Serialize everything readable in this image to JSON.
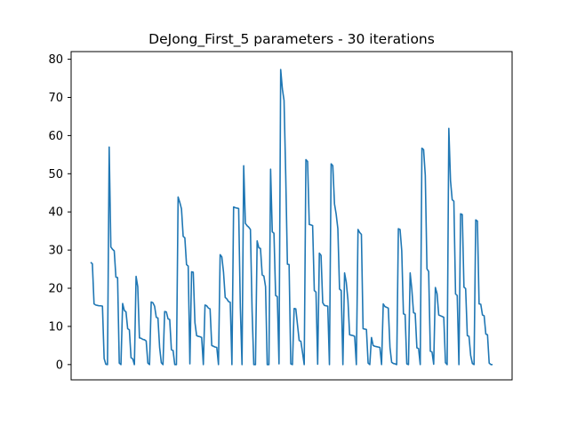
{
  "chart_data": {
    "type": "line",
    "title": "DeJong_First_5 parameters - 30 iterations",
    "xlabel": "",
    "ylabel": "",
    "ylim": [
      -4,
      82
    ],
    "yticks": [
      0,
      10,
      20,
      30,
      40,
      50,
      60,
      70,
      80
    ],
    "xticks_visible": false,
    "grid": false,
    "legend": "none",
    "colors": {
      "line": "#1f77b4",
      "axes": "#000000",
      "background": "#ffffff"
    },
    "series": [
      {
        "points": [
          [
            0,
            26.8
          ],
          [
            1,
            26.4
          ],
          [
            2,
            15.9
          ],
          [
            3,
            15.6
          ],
          [
            4,
            15.5
          ],
          [
            5,
            15.4
          ],
          [
            6,
            15.4
          ],
          [
            7,
            15.3
          ],
          [
            8,
            1.6
          ],
          [
            9,
            0.1
          ],
          [
            10,
            0.0
          ],
          [
            11,
            57.0
          ],
          [
            12,
            30.8
          ],
          [
            13,
            30.2
          ],
          [
            14,
            29.8
          ],
          [
            15,
            22.9
          ],
          [
            16,
            22.8
          ],
          [
            17,
            0.4
          ],
          [
            18,
            0.0
          ],
          [
            19,
            16.0
          ],
          [
            20,
            14.2
          ],
          [
            21,
            13.8
          ],
          [
            22,
            9.4
          ],
          [
            23,
            9.1
          ],
          [
            24,
            1.8
          ],
          [
            25,
            1.5
          ],
          [
            26,
            0.0
          ],
          [
            27,
            23.1
          ],
          [
            28,
            20.4
          ],
          [
            29,
            7.0
          ],
          [
            30,
            6.9
          ],
          [
            31,
            6.6
          ],
          [
            32,
            6.5
          ],
          [
            33,
            6.2
          ],
          [
            34,
            0.4
          ],
          [
            35,
            0.0
          ],
          [
            36,
            16.4
          ],
          [
            37,
            16.2
          ],
          [
            38,
            15.3
          ],
          [
            39,
            12.4
          ],
          [
            40,
            12.2
          ],
          [
            41,
            4.5
          ],
          [
            42,
            0.5
          ],
          [
            43,
            0.0
          ],
          [
            44,
            13.9
          ],
          [
            45,
            13.8
          ],
          [
            46,
            12.0
          ],
          [
            47,
            11.8
          ],
          [
            48,
            3.9
          ],
          [
            49,
            3.7
          ],
          [
            50,
            0.0
          ],
          [
            51,
            0.0
          ],
          [
            52,
            43.9
          ],
          [
            53,
            42.5
          ],
          [
            54,
            40.8
          ],
          [
            55,
            33.6
          ],
          [
            56,
            33.2
          ],
          [
            57,
            26.2
          ],
          [
            58,
            25.8
          ],
          [
            59,
            0.2
          ],
          [
            60,
            24.3
          ],
          [
            61,
            24.2
          ],
          [
            62,
            11.0
          ],
          [
            63,
            7.6
          ],
          [
            64,
            7.4
          ],
          [
            65,
            7.3
          ],
          [
            66,
            7.1
          ],
          [
            67,
            0.0
          ],
          [
            68,
            15.6
          ],
          [
            69,
            15.4
          ],
          [
            70,
            14.8
          ],
          [
            71,
            14.6
          ],
          [
            72,
            5.0
          ],
          [
            73,
            4.8
          ],
          [
            74,
            4.6
          ],
          [
            75,
            4.5
          ],
          [
            76,
            0.0
          ],
          [
            77,
            28.8
          ],
          [
            78,
            28.2
          ],
          [
            79,
            24.2
          ],
          [
            80,
            17.6
          ],
          [
            81,
            17.2
          ],
          [
            82,
            16.5
          ],
          [
            83,
            16.3
          ],
          [
            84,
            0.0
          ],
          [
            85,
            41.3
          ],
          [
            86,
            41.1
          ],
          [
            87,
            41.0
          ],
          [
            88,
            40.9
          ],
          [
            89,
            15.0
          ],
          [
            90,
            0.0
          ],
          [
            91,
            52.1
          ],
          [
            92,
            37.0
          ],
          [
            93,
            36.4
          ],
          [
            94,
            36.0
          ],
          [
            95,
            35.4
          ],
          [
            96,
            14.0
          ],
          [
            97,
            0.0
          ],
          [
            98,
            0.0
          ],
          [
            99,
            32.4
          ],
          [
            100,
            30.6
          ],
          [
            101,
            30.4
          ],
          [
            102,
            23.5
          ],
          [
            103,
            23.2
          ],
          [
            104,
            20.4
          ],
          [
            105,
            0.0
          ],
          [
            106,
            0.0
          ],
          [
            107,
            51.2
          ],
          [
            108,
            34.8
          ],
          [
            109,
            34.4
          ],
          [
            110,
            18.1
          ],
          [
            111,
            17.8
          ],
          [
            112,
            0.2
          ],
          [
            113,
            77.3
          ],
          [
            114,
            72.2
          ],
          [
            115,
            69.2
          ],
          [
            116,
            49.6
          ],
          [
            117,
            26.3
          ],
          [
            118,
            26.2
          ],
          [
            119,
            0.2
          ],
          [
            120,
            0.0
          ],
          [
            121,
            14.7
          ],
          [
            122,
            14.6
          ],
          [
            123,
            10.4
          ],
          [
            124,
            6.3
          ],
          [
            125,
            6.1
          ],
          [
            126,
            3.1
          ],
          [
            127,
            0.0
          ],
          [
            128,
            53.7
          ],
          [
            129,
            53.2
          ],
          [
            130,
            36.7
          ],
          [
            131,
            36.6
          ],
          [
            132,
            36.4
          ],
          [
            133,
            19.4
          ],
          [
            134,
            19.0
          ],
          [
            135,
            0.1
          ],
          [
            136,
            29.2
          ],
          [
            137,
            28.6
          ],
          [
            138,
            16.2
          ],
          [
            139,
            15.5
          ],
          [
            140,
            15.4
          ],
          [
            141,
            15.3
          ],
          [
            142,
            0.0
          ],
          [
            143,
            52.6
          ],
          [
            144,
            52.1
          ],
          [
            145,
            42.1
          ],
          [
            146,
            39.4
          ],
          [
            147,
            35.6
          ],
          [
            148,
            19.8
          ],
          [
            149,
            19.4
          ],
          [
            150,
            0.0
          ],
          [
            151,
            24.0
          ],
          [
            152,
            21.6
          ],
          [
            153,
            16.9
          ],
          [
            154,
            7.8
          ],
          [
            155,
            7.7
          ],
          [
            156,
            7.6
          ],
          [
            157,
            7.4
          ],
          [
            158,
            0.0
          ],
          [
            159,
            35.4
          ],
          [
            160,
            34.6
          ],
          [
            161,
            34.1
          ],
          [
            162,
            9.4
          ],
          [
            163,
            9.3
          ],
          [
            164,
            9.2
          ],
          [
            165,
            0.4
          ],
          [
            166,
            0.0
          ],
          [
            167,
            7.1
          ],
          [
            168,
            5.0
          ],
          [
            169,
            4.8
          ],
          [
            170,
            4.7
          ],
          [
            171,
            4.6
          ],
          [
            172,
            4.5
          ],
          [
            173,
            0.0
          ],
          [
            174,
            15.9
          ],
          [
            175,
            15.2
          ],
          [
            176,
            15.0
          ],
          [
            177,
            14.8
          ],
          [
            178,
            4.5
          ],
          [
            179,
            0.6
          ],
          [
            180,
            0.3
          ],
          [
            181,
            0.2
          ],
          [
            182,
            0.0
          ],
          [
            183,
            35.6
          ],
          [
            184,
            35.4
          ],
          [
            185,
            29.8
          ],
          [
            186,
            13.3
          ],
          [
            187,
            13.1
          ],
          [
            188,
            0.2
          ],
          [
            189,
            0.0
          ],
          [
            190,
            24.0
          ],
          [
            191,
            19.7
          ],
          [
            192,
            13.6
          ],
          [
            193,
            13.4
          ],
          [
            194,
            4.4
          ],
          [
            195,
            4.2
          ],
          [
            196,
            0.0
          ],
          [
            197,
            56.7
          ],
          [
            198,
            56.3
          ],
          [
            199,
            49.6
          ],
          [
            200,
            25.1
          ],
          [
            201,
            24.4
          ],
          [
            202,
            3.5
          ],
          [
            203,
            3.3
          ],
          [
            204,
            0.1
          ],
          [
            205,
            20.2
          ],
          [
            206,
            18.6
          ],
          [
            207,
            13.0
          ],
          [
            208,
            12.8
          ],
          [
            209,
            12.6
          ],
          [
            210,
            12.4
          ],
          [
            211,
            0.5
          ],
          [
            212,
            0.0
          ],
          [
            213,
            61.9
          ],
          [
            214,
            48.2
          ],
          [
            215,
            43.2
          ],
          [
            216,
            42.8
          ],
          [
            217,
            18.5
          ],
          [
            218,
            18.1
          ],
          [
            219,
            0.0
          ],
          [
            220,
            39.5
          ],
          [
            221,
            39.3
          ],
          [
            222,
            20.3
          ],
          [
            223,
            19.9
          ],
          [
            224,
            7.6
          ],
          [
            225,
            7.4
          ],
          [
            226,
            2.4
          ],
          [
            227,
            0.3
          ],
          [
            228,
            0.0
          ],
          [
            229,
            37.9
          ],
          [
            230,
            37.6
          ],
          [
            231,
            15.9
          ],
          [
            232,
            15.8
          ],
          [
            233,
            13.0
          ],
          [
            234,
            12.8
          ],
          [
            235,
            8.0
          ],
          [
            236,
            7.8
          ],
          [
            237,
            0.4
          ],
          [
            238,
            0.0
          ],
          [
            239,
            0.0
          ]
        ]
      }
    ]
  }
}
